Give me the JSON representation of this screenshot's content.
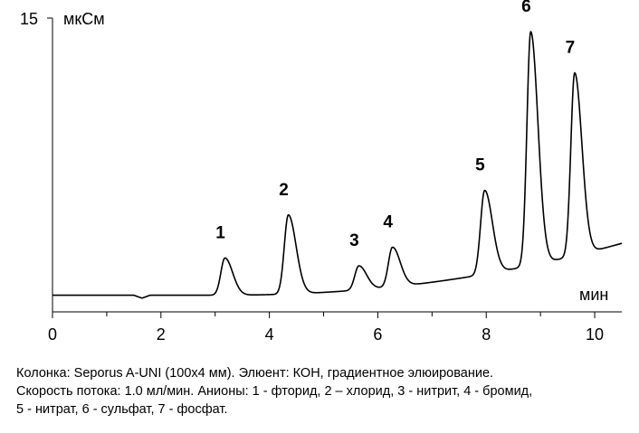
{
  "chart_data": {
    "type": "line",
    "xlabel": "мин",
    "ylabel": "мкСм",
    "xlim": [
      0,
      10.5
    ],
    "ylim": [
      0,
      15
    ],
    "x_ticks": [
      0,
      2,
      4,
      6,
      8,
      10
    ],
    "y_ticks": [
      15
    ],
    "grid": false,
    "baseline": [
      {
        "x": 0,
        "y": 0.85
      },
      {
        "x": 1.5,
        "y": 0.85
      },
      {
        "x": 1.65,
        "y": 0.7
      },
      {
        "x": 1.8,
        "y": 0.85
      },
      {
        "x": 3.0,
        "y": 0.85
      },
      {
        "x": 10.5,
        "y": 3.5
      }
    ],
    "peaks": [
      {
        "label": "1",
        "name": "фторид",
        "x": 3.18,
        "y": 2.75
      },
      {
        "label": "2",
        "name": "хлорид",
        "x": 4.35,
        "y": 4.95
      },
      {
        "label": "3",
        "name": "нитрит",
        "x": 5.65,
        "y": 2.35
      },
      {
        "label": "4",
        "name": "бромид",
        "x": 6.27,
        "y": 3.3
      },
      {
        "label": "5",
        "name": "нитрат",
        "x": 7.97,
        "y": 6.2
      },
      {
        "label": "6",
        "name": "сульфат",
        "x": 8.82,
        "y": 14.3
      },
      {
        "label": "7",
        "name": "фосфат",
        "x": 9.63,
        "y": 12.2
      }
    ]
  },
  "caption": {
    "line1": "Колонка: Seporus A-UNI (100x4 мм). Элюент: КОН, градиентное элюирование.",
    "line2": "Скорость потока: 1.0 мл/мин.  Анионы: 1 - фторид, 2 – хлорид, 3 - нитрит, 4 - бромид,",
    "line3": "5 - нитрат, 6 - сульфат, 7 - фосфат."
  }
}
